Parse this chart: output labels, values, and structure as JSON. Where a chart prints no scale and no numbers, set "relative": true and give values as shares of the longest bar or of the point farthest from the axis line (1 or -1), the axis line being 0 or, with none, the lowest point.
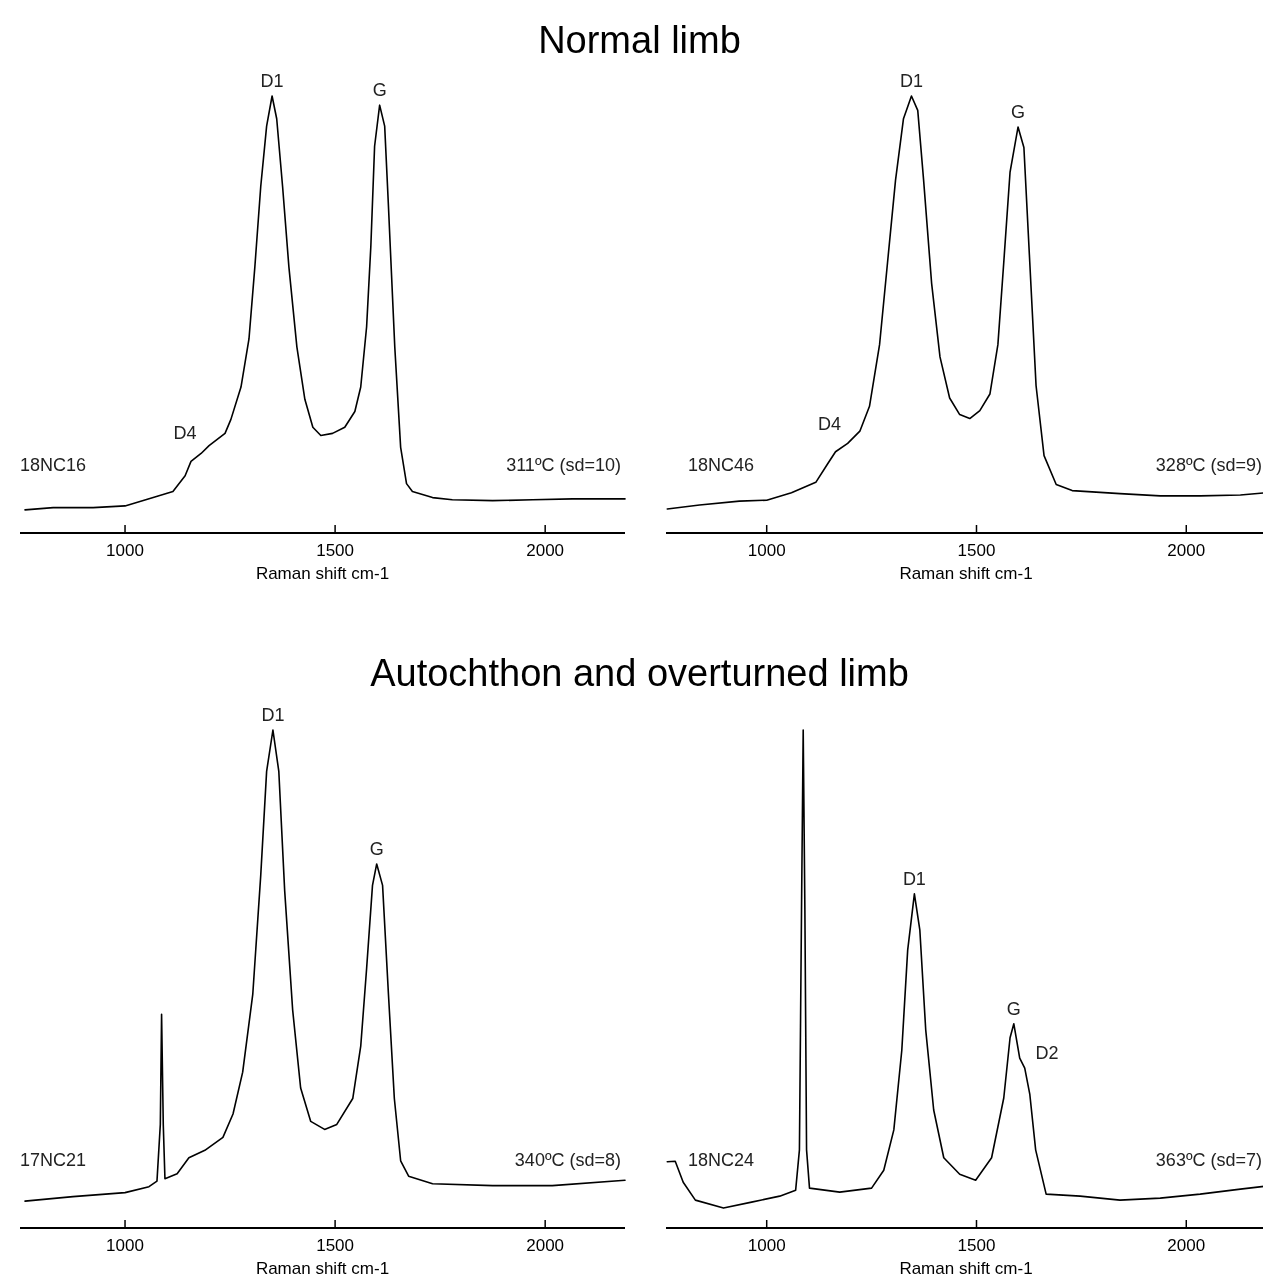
{
  "chart_data": [
    {
      "type": "line",
      "title": "Normal limb",
      "relative": true,
      "xlabel": "Raman shift cm-1",
      "xlim": [
        750,
        2190
      ],
      "xticks": [
        1000,
        1500,
        2000
      ],
      "annotations": [
        "311ºC (sd=10)",
        {
          "text": "D4",
          "x": 1157,
          "y": 0.164
        },
        {
          "text": "D1",
          "x": 1350,
          "y": 1.0
        },
        {
          "text": "G",
          "x": 1606,
          "y": 0.979
        }
      ],
      "series": [
        {
          "name": "18NC16",
          "color": "#000000",
          "x": [
            762,
            829,
            924,
            1000,
            1067,
            1114,
            1143,
            1157,
            1181,
            1200,
            1238,
            1252,
            1276,
            1295,
            1309,
            1323,
            1337,
            1350,
            1361,
            1375,
            1390,
            1409,
            1428,
            1447,
            1466,
            1494,
            1523,
            1547,
            1561,
            1575,
            1585,
            1594,
            1606,
            1618,
            1627,
            1642,
            1656,
            1670,
            1684,
            1732,
            1779,
            1875,
            1970,
            2065,
            2190
          ],
          "values": [
            0.053,
            0.058,
            0.058,
            0.062,
            0.081,
            0.095,
            0.131,
            0.164,
            0.182,
            0.2,
            0.228,
            0.26,
            0.334,
            0.444,
            0.609,
            0.793,
            0.931,
            1.0,
            0.948,
            0.793,
            0.609,
            0.426,
            0.306,
            0.242,
            0.223,
            0.228,
            0.242,
            0.278,
            0.334,
            0.472,
            0.655,
            0.885,
            0.979,
            0.931,
            0.747,
            0.426,
            0.196,
            0.113,
            0.095,
            0.081,
            0.076,
            0.074,
            0.076,
            0.078,
            0.078
          ]
        }
      ]
    },
    {
      "type": "line",
      "relative": true,
      "xlabel": "Raman shift cm-1",
      "xlim": [
        760,
        2190
      ],
      "xticks": [
        1000,
        1500,
        2000
      ],
      "annotations": [
        "328ºC (sd=9)",
        {
          "text": "D4",
          "x": 1164,
          "y": 0.186
        },
        {
          "text": "D1",
          "x": 1345,
          "y": 1.0
        },
        {
          "text": "G",
          "x": 1599,
          "y": 0.929
        }
      ],
      "series": [
        {
          "name": "18NC46",
          "color": "#000000",
          "x": [
            763,
            840,
            935,
            1000,
            1059,
            1117,
            1145,
            1164,
            1193,
            1222,
            1245,
            1269,
            1288,
            1307,
            1326,
            1345,
            1360,
            1374,
            1393,
            1413,
            1436,
            1460,
            1484,
            1508,
            1532,
            1551,
            1565,
            1580,
            1599,
            1613,
            1627,
            1642,
            1661,
            1690,
            1728,
            1842,
            1938,
            2033,
            2129,
            2190
          ],
          "values": [
            0.055,
            0.064,
            0.073,
            0.075,
            0.092,
            0.116,
            0.158,
            0.186,
            0.205,
            0.233,
            0.29,
            0.431,
            0.619,
            0.807,
            0.948,
            1.0,
            0.967,
            0.807,
            0.572,
            0.403,
            0.309,
            0.271,
            0.262,
            0.28,
            0.318,
            0.431,
            0.619,
            0.826,
            0.929,
            0.882,
            0.619,
            0.337,
            0.177,
            0.111,
            0.097,
            0.09,
            0.085,
            0.085,
            0.087,
            0.092
          ]
        }
      ]
    },
    {
      "type": "line",
      "title": "Autochthon and overturned limb",
      "relative": true,
      "xlabel": "Raman shift cm-1",
      "xlim": [
        750,
        2190
      ],
      "xticks": [
        1000,
        1500,
        2000
      ],
      "annotations": [
        "340ºC (sd=8)",
        {
          "text": "D1",
          "x": 1352,
          "y": 1.0
        },
        {
          "text": "G",
          "x": 1599,
          "y": 0.731
        }
      ],
      "series": [
        {
          "name": "17NC21",
          "color": "#000000",
          "x": [
            762,
            876,
            1000,
            1057,
            1076,
            1084,
            1087,
            1091,
            1095,
            1124,
            1152,
            1190,
            1233,
            1257,
            1280,
            1304,
            1323,
            1337,
            1352,
            1366,
            1380,
            1399,
            1418,
            1442,
            1475,
            1504,
            1542,
            1561,
            1575,
            1589,
            1599,
            1613,
            1627,
            1641,
            1656,
            1675,
            1732,
            1875,
            2017,
            2190
          ],
          "values": [
            0.054,
            0.063,
            0.071,
            0.083,
            0.094,
            0.208,
            0.429,
            0.208,
            0.099,
            0.109,
            0.141,
            0.156,
            0.182,
            0.229,
            0.313,
            0.469,
            0.708,
            0.917,
            1.0,
            0.917,
            0.677,
            0.4375,
            0.281,
            0.214,
            0.198,
            0.208,
            0.26,
            0.365,
            0.521,
            0.688,
            0.731,
            0.688,
            0.469,
            0.26,
            0.135,
            0.104,
            0.089,
            0.085,
            0.085,
            0.096
          ]
        }
      ]
    },
    {
      "type": "line",
      "relative": true,
      "xlabel": "Raman shift cm-1",
      "xlim": [
        760,
        2190
      ],
      "xticks": [
        1000,
        1500,
        2000
      ],
      "annotations": [
        "363ºC (sd=7)",
        {
          "text": "D1",
          "x": 1352,
          "y": 0.671
        },
        {
          "text": "G",
          "x": 1589,
          "y": 0.41
        },
        {
          "text": "D2",
          "x": 1625,
          "y": 0.321
        }
      ],
      "series": [
        {
          "name": "18NC24",
          "color": "#000000",
          "x": [
            763,
            782,
            801,
            830,
            897,
            964,
            1031,
            1069,
            1078,
            1083,
            1087,
            1091,
            1095,
            1102,
            1174,
            1250,
            1279,
            1303,
            1322,
            1336,
            1352,
            1365,
            1379,
            1398,
            1422,
            1460,
            1498,
            1536,
            1565,
            1580,
            1589,
            1603,
            1615,
            1627,
            1641,
            1666,
            1747,
            1842,
            1938,
            2033,
            2129,
            2190
          ],
          "values": [
            0.133,
            0.134,
            0.092,
            0.056,
            0.04,
            0.052,
            0.064,
            0.076,
            0.157,
            0.639,
            1.0,
            0.639,
            0.157,
            0.08,
            0.072,
            0.08,
            0.116,
            0.197,
            0.357,
            0.558,
            0.671,
            0.598,
            0.398,
            0.237,
            0.141,
            0.108,
            0.096,
            0.141,
            0.261,
            0.382,
            0.41,
            0.341,
            0.321,
            0.269,
            0.157,
            0.068,
            0.064,
            0.056,
            0.06,
            0.068,
            0.078,
            0.084
          ]
        }
      ]
    }
  ]
}
